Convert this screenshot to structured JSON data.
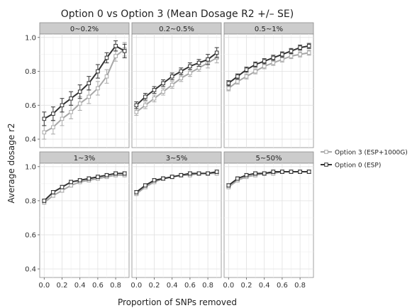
{
  "chart_data": {
    "type": "line",
    "title": "Option 0 vs Option 3 (Mean Dosage R2 +/– SE)",
    "xlabel": "Proportion of SNPs removed",
    "ylabel": "Average dosage r2",
    "xlim": [
      -0.05,
      0.95
    ],
    "ylim": [
      0.35,
      1.02
    ],
    "x_ticks": [
      0.0,
      0.2,
      0.4,
      0.6,
      0.8
    ],
    "x_tick_labels": [
      "0.0",
      "0.2",
      "0.4",
      "0.6",
      "0.8"
    ],
    "y_ticks": [
      0.4,
      0.6,
      0.8,
      1.0
    ],
    "y_tick_labels": [
      "0.4",
      "0.6",
      "0.8",
      "1.0"
    ],
    "grid": true,
    "legend_position": "right",
    "legend": [
      {
        "name": "Option 3 (ESP+1000G)",
        "color": "#a8a8a8"
      },
      {
        "name": "Option 0 (ESP)",
        "color": "#333333"
      }
    ],
    "x": [
      0.0,
      0.1,
      0.2,
      0.3,
      0.4,
      0.5,
      0.6,
      0.7,
      0.8,
      0.9
    ],
    "panels": [
      {
        "label": "0~0.2%",
        "series": [
          {
            "name": "Option 3 (ESP+1000G)",
            "values": [
              0.44,
              0.47,
              0.52,
              0.56,
              0.61,
              0.65,
              0.7,
              0.77,
              0.89,
              0.93
            ],
            "se": [
              0.04,
              0.04,
              0.04,
              0.04,
              0.04,
              0.04,
              0.04,
              0.04,
              0.03,
              0.04
            ]
          },
          {
            "name": "Option 0 (ESP)",
            "values": [
              0.52,
              0.55,
              0.6,
              0.64,
              0.68,
              0.73,
              0.8,
              0.88,
              0.95,
              0.92
            ],
            "se": [
              0.04,
              0.04,
              0.04,
              0.04,
              0.04,
              0.04,
              0.04,
              0.03,
              0.03,
              0.04
            ]
          }
        ]
      },
      {
        "label": "0.2~0.5%",
        "series": [
          {
            "name": "Option 3 (ESP+1000G)",
            "values": [
              0.56,
              0.6,
              0.64,
              0.68,
              0.72,
              0.76,
              0.79,
              0.82,
              0.85,
              0.88
            ],
            "se": [
              0.02,
              0.02,
              0.02,
              0.02,
              0.02,
              0.02,
              0.02,
              0.02,
              0.03,
              0.03
            ]
          },
          {
            "name": "Option 0 (ESP)",
            "values": [
              0.6,
              0.65,
              0.69,
              0.73,
              0.77,
              0.8,
              0.83,
              0.85,
              0.87,
              0.91
            ],
            "se": [
              0.02,
              0.02,
              0.02,
              0.02,
              0.02,
              0.02,
              0.02,
              0.02,
              0.03,
              0.03
            ]
          }
        ]
      },
      {
        "label": "0.5~1%",
        "series": [
          {
            "name": "Option 3 (ESP+1000G)",
            "values": [
              0.7,
              0.74,
              0.77,
              0.8,
              0.83,
              0.85,
              0.87,
              0.89,
              0.9,
              0.91
            ],
            "se": [
              0.015,
              0.015,
              0.015,
              0.015,
              0.015,
              0.015,
              0.015,
              0.015,
              0.015,
              0.015
            ]
          },
          {
            "name": "Option 0 (ESP)",
            "values": [
              0.73,
              0.77,
              0.81,
              0.84,
              0.86,
              0.88,
              0.9,
              0.92,
              0.94,
              0.95
            ],
            "se": [
              0.015,
              0.015,
              0.015,
              0.015,
              0.015,
              0.015,
              0.015,
              0.015,
              0.015,
              0.015
            ]
          }
        ]
      },
      {
        "label": "1~3%",
        "series": [
          {
            "name": "Option 3 (ESP+1000G)",
            "values": [
              0.79,
              0.83,
              0.86,
              0.89,
              0.91,
              0.92,
              0.93,
              0.94,
              0.95,
              0.95
            ],
            "se": [
              0.01,
              0.01,
              0.01,
              0.01,
              0.01,
              0.01,
              0.01,
              0.01,
              0.01,
              0.01
            ]
          },
          {
            "name": "Option 0 (ESP)",
            "values": [
              0.8,
              0.85,
              0.88,
              0.91,
              0.92,
              0.93,
              0.94,
              0.95,
              0.96,
              0.96
            ],
            "se": [
              0.01,
              0.01,
              0.01,
              0.01,
              0.01,
              0.01,
              0.01,
              0.01,
              0.01,
              0.01
            ]
          }
        ]
      },
      {
        "label": "3~5%",
        "series": [
          {
            "name": "Option 3 (ESP+1000G)",
            "values": [
              0.84,
              0.88,
              0.91,
              0.93,
              0.94,
              0.95,
              0.95,
              0.96,
              0.96,
              0.96
            ],
            "se": [
              0.01,
              0.01,
              0.01,
              0.01,
              0.01,
              0.01,
              0.01,
              0.01,
              0.01,
              0.01
            ]
          },
          {
            "name": "Option 0 (ESP)",
            "values": [
              0.85,
              0.89,
              0.92,
              0.93,
              0.94,
              0.95,
              0.96,
              0.96,
              0.96,
              0.97
            ],
            "se": [
              0.01,
              0.01,
              0.01,
              0.01,
              0.01,
              0.01,
              0.01,
              0.01,
              0.01,
              0.01
            ]
          }
        ]
      },
      {
        "label": "5~50%",
        "series": [
          {
            "name": "Option 3 (ESP+1000G)",
            "values": [
              0.88,
              0.92,
              0.94,
              0.95,
              0.96,
              0.96,
              0.97,
              0.97,
              0.97,
              0.97
            ],
            "se": [
              0.01,
              0.01,
              0.01,
              0.01,
              0.01,
              0.01,
              0.01,
              0.01,
              0.01,
              0.01
            ]
          },
          {
            "name": "Option 0 (ESP)",
            "values": [
              0.89,
              0.93,
              0.95,
              0.96,
              0.96,
              0.97,
              0.97,
              0.97,
              0.97,
              0.97
            ],
            "se": [
              0.01,
              0.01,
              0.01,
              0.01,
              0.01,
              0.01,
              0.01,
              0.01,
              0.01,
              0.01
            ]
          }
        ]
      }
    ]
  }
}
